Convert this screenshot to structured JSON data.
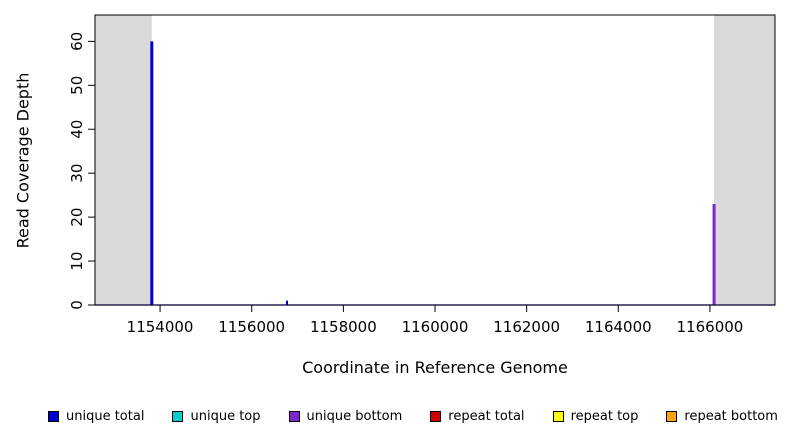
{
  "chart_data": {
    "type": "line",
    "title": "",
    "xlabel": "Coordinate in Reference Genome",
    "ylabel": "Read Coverage Depth",
    "xlim": [
      1152580,
      1167420
    ],
    "ylim": [
      0,
      66
    ],
    "x_ticks": [
      1154000,
      1156000,
      1158000,
      1160000,
      1162000,
      1164000,
      1166000
    ],
    "y_ticks": [
      0,
      10,
      20,
      30,
      40,
      50,
      60
    ],
    "grid": false,
    "legend_position": "bottom",
    "plot_bg": "#ffffff",
    "border_color": "#000000",
    "shaded_region_color": "#d9d9d9",
    "shaded_regions": [
      {
        "x0": 1152580,
        "x1": 1153820
      },
      {
        "x0": 1166090,
        "x1": 1167420
      }
    ],
    "baseline": {
      "y": 0,
      "color": "#7b68ee"
    },
    "series": [
      {
        "name": "unique total",
        "color": "#0000cd",
        "spikes": [
          {
            "x": 1153820,
            "y": 60,
            "w": 3
          },
          {
            "x": 1156770,
            "y": 1,
            "w": 2
          }
        ]
      },
      {
        "name": "unique top",
        "color": "#00ced1",
        "spikes": []
      },
      {
        "name": "unique bottom",
        "color": "#7d26cd",
        "spikes": [
          {
            "x": 1166090,
            "y": 23,
            "w": 3
          }
        ]
      },
      {
        "name": "repeat total",
        "color": "#cd0000",
        "spikes": []
      },
      {
        "name": "repeat top",
        "color": "#ffff00",
        "spikes": []
      },
      {
        "name": "repeat bottom",
        "color": "#ffa500",
        "spikes": []
      }
    ]
  }
}
